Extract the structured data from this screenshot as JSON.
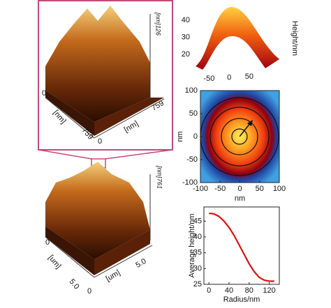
{
  "afm_panels": {
    "top": {
      "z_unit": "[nm]",
      "z_max": "126",
      "left_origin": "0",
      "left_unit": "[nm]",
      "left_end": "759",
      "right_origin": "0",
      "right_unit": "[nm]",
      "right_end": "759"
    },
    "bottom": {
      "z_unit": "[nm]",
      "z_max": "761",
      "left_origin": "0",
      "left_unit": "[um]",
      "left_end": "5.0",
      "right_origin": "0",
      "right_unit": "[um]",
      "right_end": "5.0"
    }
  },
  "chart_data": [
    {
      "type": "surface",
      "y_label": "Height/nm",
      "ylim": [
        13,
        50
      ],
      "yticks": [
        20,
        30,
        40
      ],
      "xlim": [
        -75,
        125
      ],
      "xticks": [
        -50,
        0,
        50
      ]
    },
    {
      "type": "heatmap",
      "x_label": "nm",
      "y_label": "nm",
      "xlim": [
        -100,
        100
      ],
      "ylim": [
        -100,
        100
      ],
      "xticks": [
        -100,
        -50,
        0,
        50,
        100
      ],
      "yticks": [
        -100,
        -50,
        0,
        50,
        100
      ]
    },
    {
      "type": "line",
      "x_label": "Radius/nm",
      "y_label": "Average height/nm",
      "xlim": [
        -10,
        140
      ],
      "ylim": [
        25,
        49.5
      ],
      "xticks": [
        0,
        40,
        80,
        120
      ],
      "yticks": [
        25,
        30,
        35,
        40,
        45
      ],
      "x": [
        0,
        10,
        20,
        30,
        40,
        50,
        60,
        70,
        80,
        90,
        100,
        110,
        120,
        130
      ],
      "values": [
        47.5,
        47.3,
        46.5,
        45,
        43,
        40.5,
        37.5,
        34.5,
        31.5,
        29,
        27.2,
        26.3,
        26,
        26
      ],
      "color": "#e01010"
    }
  ]
}
